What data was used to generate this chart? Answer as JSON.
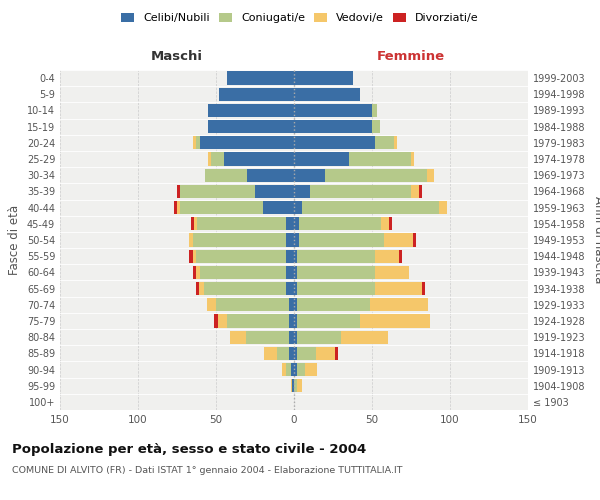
{
  "age_groups": [
    "100+",
    "95-99",
    "90-94",
    "85-89",
    "80-84",
    "75-79",
    "70-74",
    "65-69",
    "60-64",
    "55-59",
    "50-54",
    "45-49",
    "40-44",
    "35-39",
    "30-34",
    "25-29",
    "20-24",
    "15-19",
    "10-14",
    "5-9",
    "0-4"
  ],
  "birth_years": [
    "≤ 1903",
    "1904-1908",
    "1909-1913",
    "1914-1918",
    "1919-1923",
    "1924-1928",
    "1929-1933",
    "1934-1938",
    "1939-1943",
    "1944-1948",
    "1949-1953",
    "1954-1958",
    "1959-1963",
    "1964-1968",
    "1969-1973",
    "1974-1978",
    "1979-1983",
    "1984-1988",
    "1989-1993",
    "1994-1998",
    "1999-2003"
  ],
  "male_celibi": [
    0,
    1,
    2,
    3,
    3,
    3,
    3,
    5,
    5,
    5,
    5,
    5,
    20,
    25,
    30,
    45,
    60,
    55,
    55,
    48,
    43
  ],
  "male_coniugati": [
    0,
    0,
    3,
    8,
    28,
    40,
    47,
    53,
    55,
    58,
    60,
    57,
    53,
    48,
    27,
    8,
    3,
    0,
    0,
    0,
    0
  ],
  "male_vedovi": [
    0,
    1,
    3,
    8,
    10,
    6,
    6,
    3,
    3,
    2,
    2,
    2,
    2,
    0,
    0,
    2,
    2,
    0,
    0,
    0,
    0
  ],
  "male_divorziati": [
    0,
    0,
    0,
    0,
    0,
    2,
    0,
    2,
    2,
    2,
    0,
    2,
    2,
    2,
    0,
    0,
    0,
    0,
    0,
    0,
    0
  ],
  "female_nubili": [
    0,
    0,
    2,
    2,
    2,
    2,
    2,
    2,
    2,
    2,
    3,
    3,
    5,
    10,
    20,
    35,
    52,
    50,
    50,
    42,
    38
  ],
  "female_coniugate": [
    0,
    2,
    5,
    12,
    28,
    40,
    47,
    50,
    50,
    50,
    55,
    53,
    88,
    65,
    65,
    40,
    12,
    5,
    3,
    0,
    0
  ],
  "female_vedove": [
    0,
    3,
    8,
    12,
    30,
    45,
    37,
    30,
    22,
    15,
    18,
    5,
    5,
    5,
    5,
    2,
    2,
    0,
    0,
    0,
    0
  ],
  "female_divorziate": [
    0,
    0,
    0,
    2,
    0,
    0,
    0,
    2,
    0,
    2,
    2,
    2,
    0,
    2,
    0,
    0,
    0,
    0,
    0,
    0,
    0
  ],
  "color_celibi": "#3a6ea5",
  "color_coniugati": "#b5c98a",
  "color_vedovi": "#f5c76a",
  "color_divorziati": "#cc2222",
  "title": "Popolazione per età, sesso e stato civile - 2004",
  "subtitle": "COMUNE DI ALVITO (FR) - Dati ISTAT 1° gennaio 2004 - Elaborazione TUTTITALIA.IT",
  "label_maschi": "Maschi",
  "label_femmine": "Femmine",
  "label_fasce": "Fasce di età",
  "label_anni": "Anni di nascita",
  "legend_celibi": "Celibi/Nubili",
  "legend_coniugati": "Coniugati/e",
  "legend_vedovi": "Vedovi/e",
  "legend_divorziati": "Divorziati/e",
  "xlim": 150,
  "bg_axes": "#f0f0ee",
  "bg_fig": "#ffffff"
}
